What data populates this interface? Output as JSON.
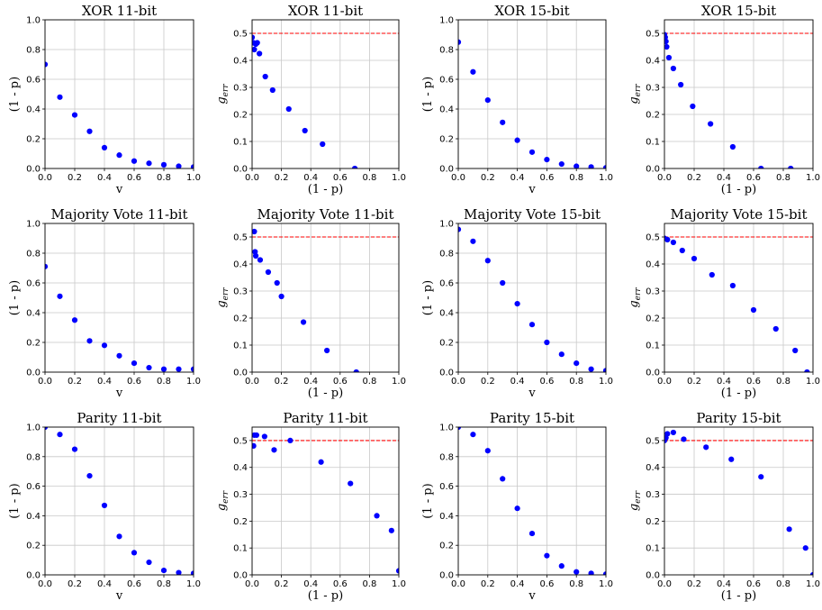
{
  "chart_data": [
    {
      "id": "xor11-v",
      "type": "scatter",
      "title": "XOR 11-bit",
      "xlabel": "v",
      "ylabel": "(1 - p)",
      "xlim": [
        0,
        1
      ],
      "ylim": [
        0,
        1
      ],
      "grid": true,
      "xticks": [
        "0.0",
        "0.2",
        "0.4",
        "0.6",
        "0.8",
        "1.0"
      ],
      "yticks": [
        "0.0",
        "0.2",
        "0.4",
        "0.6",
        "0.8",
        "1.0"
      ],
      "x": [
        0.0,
        0.1,
        0.2,
        0.3,
        0.4,
        0.5,
        0.6,
        0.7,
        0.8,
        0.9,
        1.0
      ],
      "y": [
        0.7,
        0.48,
        0.36,
        0.25,
        0.14,
        0.09,
        0.05,
        0.035,
        0.025,
        0.015,
        0.01
      ]
    },
    {
      "id": "xor11-g",
      "type": "scatter",
      "title": "XOR 11-bit",
      "xlabel": "(1 - p)",
      "ylabel": "g_err",
      "xlim": [
        0,
        1
      ],
      "ylim": [
        0,
        0.55
      ],
      "grid": true,
      "xticks": [
        "0.0",
        "0.2",
        "0.4",
        "0.6",
        "0.8",
        "1.0"
      ],
      "yticks": [
        "0.0",
        "0.1",
        "0.2",
        "0.3",
        "0.4",
        "0.5"
      ],
      "refline": 0.5,
      "x": [
        0.0,
        0.01,
        0.015,
        0.025,
        0.035,
        0.05,
        0.09,
        0.14,
        0.25,
        0.36,
        0.48,
        0.7
      ],
      "y": [
        0.485,
        0.465,
        0.44,
        0.46,
        0.465,
        0.425,
        0.34,
        0.29,
        0.22,
        0.14,
        0.09,
        0.0
      ]
    },
    {
      "id": "xor15-v",
      "type": "scatter",
      "title": "XOR 15-bit",
      "xlabel": "v",
      "ylabel": "(1 - p)",
      "xlim": [
        0,
        1
      ],
      "ylim": [
        0,
        1
      ],
      "grid": true,
      "xticks": [
        "0.0",
        "0.2",
        "0.4",
        "0.6",
        "0.8",
        "1.0"
      ],
      "yticks": [
        "0.0",
        "0.2",
        "0.4",
        "0.6",
        "0.8",
        "1.0"
      ],
      "x": [
        0.0,
        0.1,
        0.2,
        0.3,
        0.4,
        0.5,
        0.6,
        0.7,
        0.8,
        0.9,
        1.0
      ],
      "y": [
        0.85,
        0.65,
        0.46,
        0.31,
        0.19,
        0.11,
        0.06,
        0.03,
        0.015,
        0.01,
        0.005
      ]
    },
    {
      "id": "xor15-g",
      "type": "scatter",
      "title": "XOR 15-bit",
      "xlabel": "(1 - p)",
      "ylabel": "g_err",
      "xlim": [
        0,
        1
      ],
      "ylim": [
        0,
        0.55
      ],
      "grid": true,
      "xticks": [
        "0.0",
        "0.2",
        "0.4",
        "0.6",
        "0.8",
        "1.0"
      ],
      "yticks": [
        "0.0",
        "0.1",
        "0.2",
        "0.3",
        "0.4",
        "0.5"
      ],
      "refline": 0.5,
      "x": [
        0.0,
        0.005,
        0.01,
        0.015,
        0.03,
        0.06,
        0.11,
        0.19,
        0.31,
        0.46,
        0.65,
        0.85
      ],
      "y": [
        0.495,
        0.485,
        0.47,
        0.45,
        0.41,
        0.37,
        0.31,
        0.23,
        0.165,
        0.08,
        0.0,
        0.0
      ]
    },
    {
      "id": "maj11-v",
      "type": "scatter",
      "title": "Majority Vote 11-bit",
      "xlabel": "v",
      "ylabel": "(1 - p)",
      "xlim": [
        0,
        1
      ],
      "ylim": [
        0,
        1
      ],
      "grid": true,
      "xticks": [
        "0.0",
        "0.2",
        "0.4",
        "0.6",
        "0.8",
        "1.0"
      ],
      "yticks": [
        "0.0",
        "0.2",
        "0.4",
        "0.6",
        "0.8",
        "1.0"
      ],
      "x": [
        0.0,
        0.1,
        0.2,
        0.3,
        0.4,
        0.5,
        0.6,
        0.7,
        0.8,
        0.9,
        1.0
      ],
      "y": [
        0.71,
        0.51,
        0.35,
        0.21,
        0.18,
        0.11,
        0.06,
        0.03,
        0.02,
        0.02,
        0.02
      ]
    },
    {
      "id": "maj11-g",
      "type": "scatter",
      "title": "Majority Vote 11-bit",
      "xlabel": "(1 - p)",
      "ylabel": "g_err",
      "xlim": [
        0,
        1
      ],
      "ylim": [
        0,
        0.55
      ],
      "grid": true,
      "xticks": [
        "0.0",
        "0.2",
        "0.4",
        "0.6",
        "0.8",
        "1.0"
      ],
      "yticks": [
        "0.0",
        "0.1",
        "0.2",
        "0.3",
        "0.4",
        "0.5"
      ],
      "refline": 0.5,
      "x": [
        0.015,
        0.02,
        0.025,
        0.055,
        0.11,
        0.17,
        0.2,
        0.35,
        0.51,
        0.71
      ],
      "y": [
        0.52,
        0.445,
        0.43,
        0.415,
        0.37,
        0.33,
        0.28,
        0.185,
        0.08,
        0.0
      ]
    },
    {
      "id": "maj15-v",
      "type": "scatter",
      "title": "Majority Vote 15-bit",
      "xlabel": "v",
      "ylabel": "(1 - p)",
      "xlim": [
        0,
        1
      ],
      "ylim": [
        0,
        1
      ],
      "grid": true,
      "xticks": [
        "0.0",
        "0.2",
        "0.4",
        "0.6",
        "0.8",
        "1.0"
      ],
      "yticks": [
        "0.0",
        "0.2",
        "0.4",
        "0.6",
        "0.8",
        "1.0"
      ],
      "x": [
        0.0,
        0.1,
        0.2,
        0.3,
        0.4,
        0.5,
        0.6,
        0.7,
        0.8,
        0.9,
        1.0
      ],
      "y": [
        0.96,
        0.88,
        0.75,
        0.6,
        0.46,
        0.32,
        0.2,
        0.12,
        0.06,
        0.02,
        0.01
      ]
    },
    {
      "id": "maj15-g",
      "type": "scatter",
      "title": "Majority Vote 15-bit",
      "xlabel": "(1 - p)",
      "ylabel": "g_err",
      "xlim": [
        0,
        1
      ],
      "ylim": [
        0,
        0.55
      ],
      "grid": true,
      "xticks": [
        "0.0",
        "0.2",
        "0.4",
        "0.6",
        "0.8",
        "1.0"
      ],
      "yticks": [
        "0.0",
        "0.1",
        "0.2",
        "0.3",
        "0.4",
        "0.5"
      ],
      "refline": 0.5,
      "x": [
        0.0,
        0.02,
        0.06,
        0.12,
        0.2,
        0.32,
        0.46,
        0.6,
        0.75,
        0.88,
        0.96
      ],
      "y": [
        0.495,
        0.49,
        0.48,
        0.45,
        0.42,
        0.36,
        0.32,
        0.23,
        0.16,
        0.08,
        0.0
      ]
    },
    {
      "id": "par11-v",
      "type": "scatter",
      "title": "Parity 11-bit",
      "xlabel": "v",
      "ylabel": "(1 - p)",
      "xlim": [
        0,
        1
      ],
      "ylim": [
        0,
        1
      ],
      "grid": true,
      "xticks": [
        "0.0",
        "0.2",
        "0.4",
        "0.6",
        "0.8",
        "1.0"
      ],
      "yticks": [
        "0.0",
        "0.2",
        "0.4",
        "0.6",
        "0.8",
        "1.0"
      ],
      "x": [
        0.0,
        0.1,
        0.2,
        0.3,
        0.4,
        0.5,
        0.6,
        0.7,
        0.8,
        0.9,
        1.0
      ],
      "y": [
        1.0,
        0.95,
        0.85,
        0.67,
        0.47,
        0.26,
        0.15,
        0.085,
        0.03,
        0.015,
        0.01
      ]
    },
    {
      "id": "par11-g",
      "type": "scatter",
      "title": "Parity 11-bit",
      "xlabel": "(1 - p)",
      "ylabel": "g_err",
      "xlim": [
        0,
        1
      ],
      "ylim": [
        0,
        0.55
      ],
      "grid": true,
      "xticks": [
        "0.0",
        "0.2",
        "0.4",
        "0.6",
        "0.8",
        "1.0"
      ],
      "yticks": [
        "0.0",
        "0.1",
        "0.2",
        "0.3",
        "0.4",
        "0.5"
      ],
      "refline": 0.5,
      "x": [
        0.01,
        0.015,
        0.03,
        0.085,
        0.15,
        0.26,
        0.47,
        0.67,
        0.85,
        0.95,
        1.0
      ],
      "y": [
        0.48,
        0.52,
        0.52,
        0.515,
        0.465,
        0.5,
        0.42,
        0.34,
        0.22,
        0.165,
        0.015
      ]
    },
    {
      "id": "par15-v",
      "type": "scatter",
      "title": "Parity 15-bit",
      "xlabel": "v",
      "ylabel": "(1 - p)",
      "xlim": [
        0,
        1
      ],
      "ylim": [
        0,
        1
      ],
      "grid": true,
      "xticks": [
        "0.0",
        "0.2",
        "0.4",
        "0.6",
        "0.8",
        "1.0"
      ],
      "yticks": [
        "0.0",
        "0.2",
        "0.4",
        "0.6",
        "0.8",
        "1.0"
      ],
      "x": [
        0.0,
        0.1,
        0.2,
        0.3,
        0.4,
        0.5,
        0.6,
        0.7,
        0.8,
        0.9,
        1.0
      ],
      "y": [
        1.0,
        0.95,
        0.84,
        0.65,
        0.45,
        0.28,
        0.13,
        0.06,
        0.02,
        0.01,
        0.005
      ]
    },
    {
      "id": "par15-g",
      "type": "scatter",
      "title": "Parity 15-bit",
      "xlabel": "(1 - p)",
      "ylabel": "g_err",
      "xlim": [
        0,
        1
      ],
      "ylim": [
        0,
        0.55
      ],
      "grid": true,
      "xticks": [
        "0.0",
        "0.2",
        "0.4",
        "0.6",
        "0.8",
        "1.0"
      ],
      "yticks": [
        "0.0",
        "0.1",
        "0.2",
        "0.3",
        "0.4",
        "0.5"
      ],
      "refline": 0.5,
      "x": [
        0.0,
        0.01,
        0.02,
        0.06,
        0.13,
        0.28,
        0.45,
        0.65,
        0.84,
        0.95,
        1.0
      ],
      "y": [
        0.5,
        0.51,
        0.525,
        0.53,
        0.505,
        0.475,
        0.43,
        0.365,
        0.17,
        0.1,
        0.0
      ]
    }
  ],
  "colors": {
    "points": "#0000ff",
    "refline": "#ff0000",
    "grid": "#c8c8c8",
    "axes": "#000000"
  }
}
